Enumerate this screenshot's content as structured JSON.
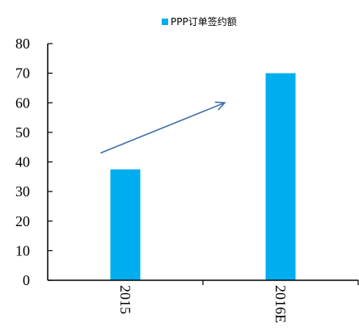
{
  "chart_data": {
    "type": "bar",
    "categories": [
      "2015",
      "2016E"
    ],
    "series": [
      {
        "name": "PPP订单签约额",
        "values": [
          37.5,
          70
        ]
      }
    ],
    "ylim": [
      0,
      80
    ],
    "yticks": [
      0,
      10,
      20,
      30,
      40,
      50,
      60,
      70,
      80
    ],
    "legend": "top-center",
    "grid": false,
    "annotations": [
      {
        "type": "arrow",
        "from": [
          0.17,
          43
        ],
        "to": [
          0.57,
          60
        ]
      }
    ],
    "colors": {
      "bar": "#00AEEF",
      "arrow": "#3E6FA8",
      "axis": "#000000"
    }
  }
}
